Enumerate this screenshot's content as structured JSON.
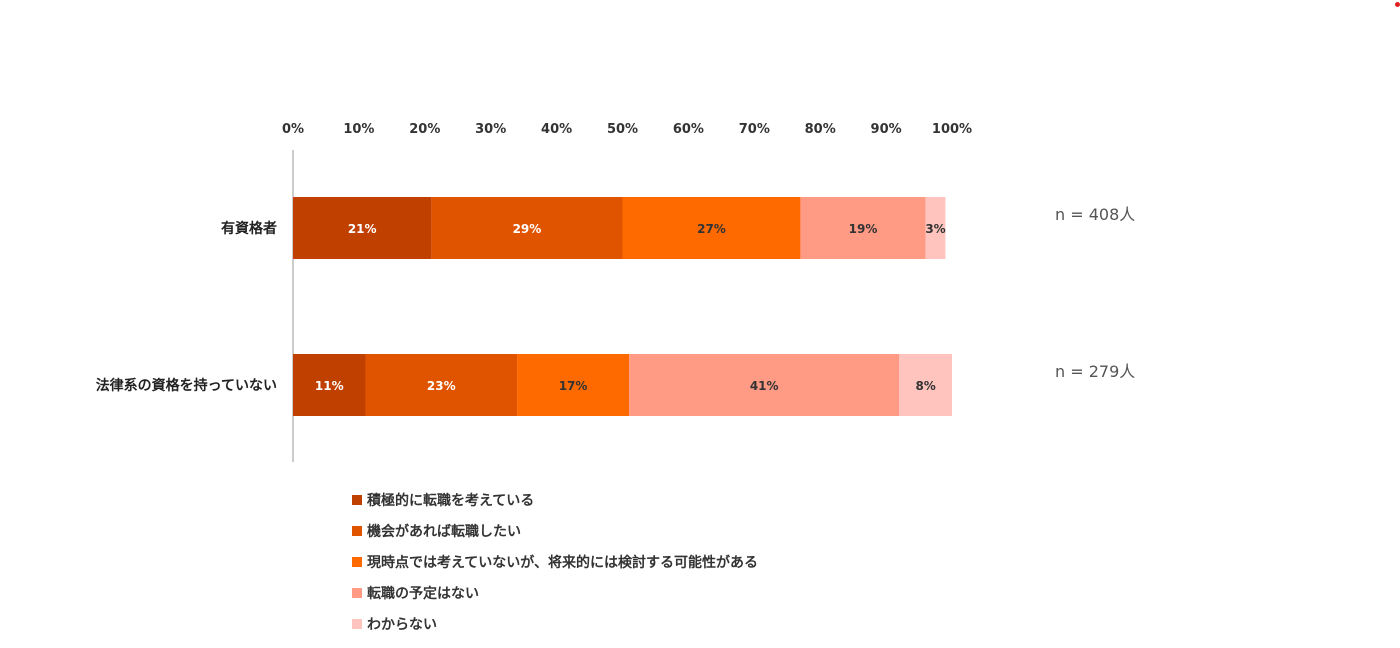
{
  "chart_data": {
    "type": "bar",
    "orientation": "horizontal",
    "stacked": true,
    "title": "",
    "xlabel": "",
    "ylabel": "",
    "xlim": [
      0,
      100
    ],
    "x_ticks": [
      "0%",
      "10%",
      "20%",
      "30%",
      "40%",
      "50%",
      "60%",
      "70%",
      "80%",
      "90%",
      "100%"
    ],
    "grid": false,
    "legend_position": "bottom",
    "categories": [
      "有資格者",
      "法律系の資格を持っていない"
    ],
    "sample_sizes": [
      "n = 408人",
      "n = 279人"
    ],
    "series": [
      {
        "name": "積極的に転職を考えている",
        "color": "#c04000",
        "label_color": "#ffffff",
        "values": [
          21,
          11
        ]
      },
      {
        "name": "機会があれば転職したい",
        "color": "#e05400",
        "label_color": "#ffffff",
        "values": [
          29,
          23
        ]
      },
      {
        "name": "現時点では考えていないが、将来的には検討する可能性がある",
        "color": "#ff6a00",
        "label_color": "#333333",
        "values": [
          27,
          17
        ]
      },
      {
        "name": "転職の予定はない",
        "color": "#ff9a85",
        "label_color": "#333333",
        "values": [
          19,
          41
        ]
      },
      {
        "name": "わからない",
        "color": "#ffc4bd",
        "label_color": "#333333",
        "values": [
          3,
          8
        ]
      }
    ]
  }
}
